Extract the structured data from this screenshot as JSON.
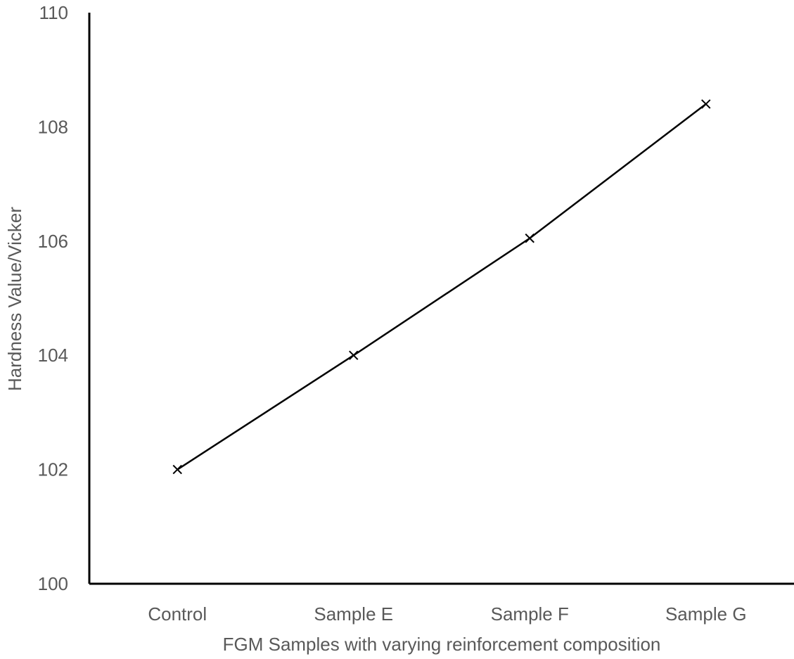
{
  "chart_data": {
    "type": "line",
    "title": "",
    "xlabel": "FGM Samples with varying reinforcement composition",
    "ylabel": "Hardness Value/Vicker",
    "categories": [
      "Control",
      "Sample E",
      "Sample F",
      "Sample G"
    ],
    "ylim": [
      100,
      110
    ],
    "y_ticks": [
      "100",
      "102",
      "104",
      "106",
      "108",
      "110"
    ],
    "grid": false,
    "legend": "none",
    "series": [
      {
        "values": [
          102.0,
          104.0,
          106.05,
          108.4
        ],
        "color": "#000000",
        "marker": "x-marker"
      }
    ]
  }
}
